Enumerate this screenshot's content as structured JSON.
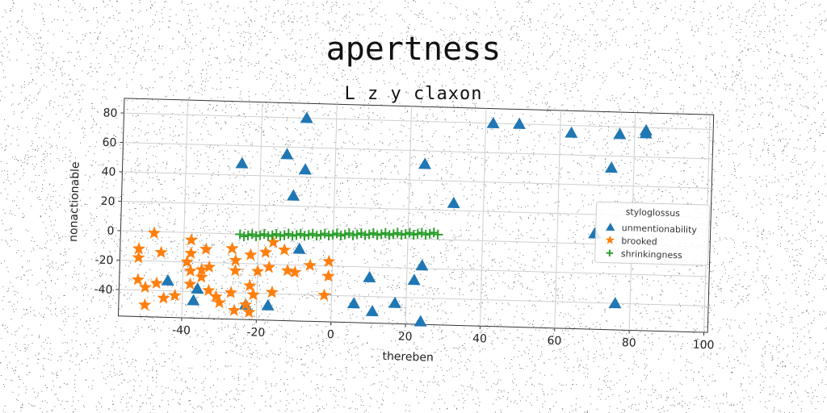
{
  "chart_data": {
    "type": "scatter",
    "title": "apertness",
    "subtitle": "L z y claxon",
    "xlabel": "thereben",
    "ylabel": "nonactionable",
    "xlim": [
      -57,
      101
    ],
    "ylim": [
      -58,
      90
    ],
    "xticks": [
      -40,
      -20,
      0,
      20,
      40,
      60,
      80,
      100
    ],
    "yticks": [
      -40,
      -20,
      0,
      20,
      40,
      60,
      80
    ],
    "grid": true,
    "legend": {
      "title": "styloglossus",
      "placement": "right"
    },
    "series": [
      {
        "name": "unmentionability",
        "marker": "triangle",
        "color": "#1f77b4",
        "points": [
          [
            -8,
            80
          ],
          [
            42,
            80
          ],
          [
            49,
            80
          ],
          [
            63,
            75
          ],
          [
            76,
            75
          ],
          [
            83,
            76
          ],
          [
            83,
            78
          ],
          [
            -25,
            48
          ],
          [
            -13,
            55
          ],
          [
            -8,
            45
          ],
          [
            24,
            51
          ],
          [
            74,
            52
          ],
          [
            -11,
            27
          ],
          [
            32,
            25
          ],
          [
            70,
            7
          ],
          [
            -9,
            -9
          ],
          [
            24,
            -18
          ],
          [
            10,
            -27
          ],
          [
            22,
            -28
          ],
          [
            -44,
            -33
          ],
          [
            -36,
            -38
          ],
          [
            6,
            -45
          ],
          [
            76,
            -40
          ],
          [
            -37,
            -46
          ],
          [
            -17,
            -48
          ],
          [
            11,
            -50
          ],
          [
            17,
            -44
          ],
          [
            -23,
            -48
          ],
          [
            24,
            -56
          ]
        ]
      },
      {
        "name": "brooked",
        "marker": "star",
        "color": "#ff7f0e",
        "points": [
          [
            -48,
            -1
          ],
          [
            -52,
            -12
          ],
          [
            -52,
            -18
          ],
          [
            -46,
            -14
          ],
          [
            -38,
            -5
          ],
          [
            -34,
            -11
          ],
          [
            -38,
            -14
          ],
          [
            -39,
            -20
          ],
          [
            -38,
            -26
          ],
          [
            -35,
            -25
          ],
          [
            -33,
            -23
          ],
          [
            -27,
            -10
          ],
          [
            -26,
            -18
          ],
          [
            -26,
            -25
          ],
          [
            -22,
            -14
          ],
          [
            -20,
            -25
          ],
          [
            -18,
            -12
          ],
          [
            -17,
            -22
          ],
          [
            -16,
            -5
          ],
          [
            -13,
            -10
          ],
          [
            -12,
            -24
          ],
          [
            -10,
            -25
          ],
          [
            -6,
            -20
          ],
          [
            -1,
            -17
          ],
          [
            -1,
            -27
          ],
          [
            -2,
            -40
          ],
          [
            -52,
            -33
          ],
          [
            -50,
            -38
          ],
          [
            -47,
            -35
          ],
          [
            -42,
            -43
          ],
          [
            -38,
            -35
          ],
          [
            -33,
            -39
          ],
          [
            -31,
            -43
          ],
          [
            -30,
            -47
          ],
          [
            -27,
            -40
          ],
          [
            -26,
            -52
          ],
          [
            -23,
            -48
          ],
          [
            -22,
            -35
          ],
          [
            -22,
            -53
          ],
          [
            -21,
            -41
          ],
          [
            -16,
            -39
          ],
          [
            -50,
            -50
          ],
          [
            -45,
            -45
          ],
          [
            -35,
            -30
          ]
        ]
      },
      {
        "name": "shrinkingness",
        "marker": "plus",
        "color": "#2ca02c",
        "x_range": [
          -25,
          28
        ],
        "y_range": [
          -1,
          4
        ],
        "count": 50
      }
    ]
  }
}
